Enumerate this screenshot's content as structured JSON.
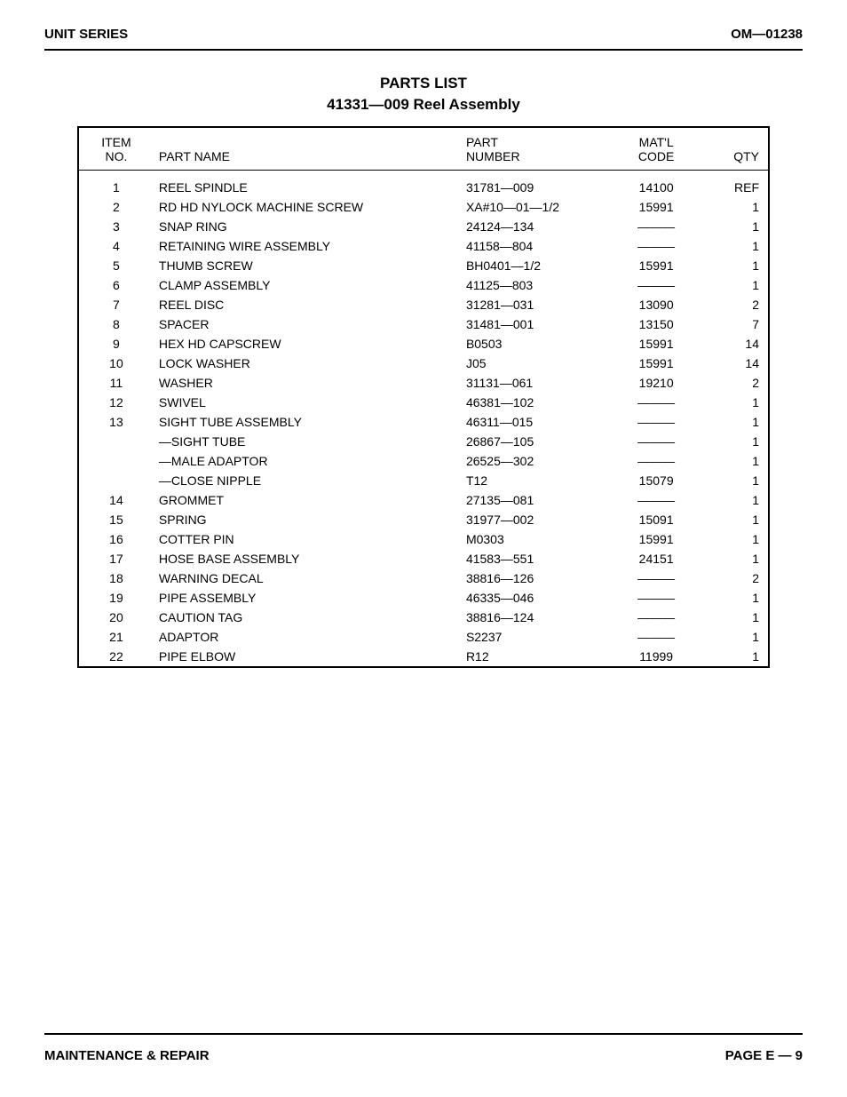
{
  "header": {
    "left": "UNIT SERIES",
    "right": "OM—01238"
  },
  "title": {
    "line1": "PARTS LIST",
    "line2": "41331—009 Reel Assembly"
  },
  "table": {
    "columns": {
      "item": "ITEM\nNO.",
      "name": "PART NAME",
      "part": "PART\nNUMBER",
      "matl": "MAT'L\nCODE",
      "qty": "QTY"
    },
    "rows": [
      {
        "item": "1",
        "name": "REEL SPINDLE",
        "part": "31781—009",
        "matl": "14100",
        "qty": "REF"
      },
      {
        "item": "2",
        "name": "RD HD NYLOCK MACHINE SCREW",
        "part": "XA#10—01—1/2",
        "matl": "15991",
        "qty": "1"
      },
      {
        "item": "3",
        "name": "SNAP RING",
        "part": "24124—134",
        "matl": "———",
        "qty": "1"
      },
      {
        "item": "4",
        "name": "RETAINING WIRE ASSEMBLY",
        "part": "41158—804",
        "matl": "———",
        "qty": "1"
      },
      {
        "item": "5",
        "name": "THUMB SCREW",
        "part": "BH0401—1/2",
        "matl": "15991",
        "qty": "1"
      },
      {
        "item": "6",
        "name": "CLAMP ASSEMBLY",
        "part": "41125—803",
        "matl": "———",
        "qty": "1"
      },
      {
        "item": "7",
        "name": "REEL DISC",
        "part": "31281—031",
        "matl": "13090",
        "qty": "2"
      },
      {
        "item": "8",
        "name": "SPACER",
        "part": "31481—001",
        "matl": "13150",
        "qty": "7"
      },
      {
        "item": "9",
        "name": "HEX HD CAPSCREW",
        "part": "B0503",
        "matl": "15991",
        "qty": "14"
      },
      {
        "item": "10",
        "name": "LOCK WASHER",
        "part": "J05",
        "matl": "15991",
        "qty": "14"
      },
      {
        "item": "11",
        "name": "WASHER",
        "part": "31131—061",
        "matl": "19210",
        "qty": "2"
      },
      {
        "item": "12",
        "name": "SWIVEL",
        "part": "46381—102",
        "matl": "———",
        "qty": "1"
      },
      {
        "item": "13",
        "name": "SIGHT TUBE ASSEMBLY",
        "part": "46311—015",
        "matl": "———",
        "qty": "1"
      },
      {
        "item": "",
        "name": "—SIGHT TUBE",
        "part": "26867—105",
        "matl": "———",
        "qty": "1"
      },
      {
        "item": "",
        "name": "—MALE ADAPTOR",
        "part": "26525—302",
        "matl": "———",
        "qty": "1"
      },
      {
        "item": "",
        "name": "—CLOSE NIPPLE",
        "part": "T12",
        "matl": "15079",
        "qty": "1"
      },
      {
        "item": "14",
        "name": "GROMMET",
        "part": "27135—081",
        "matl": "———",
        "qty": "1"
      },
      {
        "item": "15",
        "name": "SPRING",
        "part": "31977—002",
        "matl": "15091",
        "qty": "1"
      },
      {
        "item": "16",
        "name": "COTTER PIN",
        "part": "M0303",
        "matl": "15991",
        "qty": "1"
      },
      {
        "item": "17",
        "name": "HOSE BASE ASSEMBLY",
        "part": "41583—551",
        "matl": "24151",
        "qty": "1"
      },
      {
        "item": "18",
        "name": "WARNING DECAL",
        "part": "38816—126",
        "matl": "———",
        "qty": "2"
      },
      {
        "item": "19",
        "name": "PIPE ASSEMBLY",
        "part": "46335—046",
        "matl": "———",
        "qty": "1"
      },
      {
        "item": "20",
        "name": "CAUTION TAG",
        "part": "38816—124",
        "matl": "———",
        "qty": "1"
      },
      {
        "item": "21",
        "name": "ADAPTOR",
        "part": "S2237",
        "matl": "———",
        "qty": "1"
      },
      {
        "item": "22",
        "name": "PIPE ELBOW",
        "part": "R12",
        "matl": "11999",
        "qty": "1"
      }
    ]
  },
  "footer": {
    "left": "MAINTENANCE & REPAIR",
    "right": "PAGE E — 9"
  }
}
